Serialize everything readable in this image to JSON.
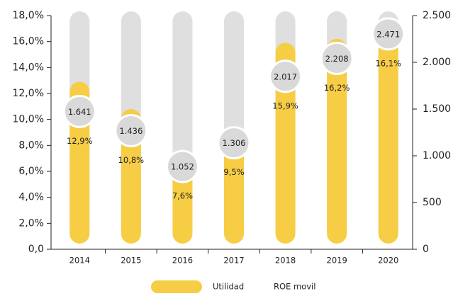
{
  "chart_data": {
    "type": "bar",
    "categories": [
      "2014",
      "2015",
      "2016",
      "2017",
      "2018",
      "2019",
      "2020"
    ],
    "series": [
      {
        "name": "Utilidad",
        "color": "#f6cd45",
        "values": [
          12.9,
          10.8,
          7.6,
          9.5,
          15.9,
          16.2,
          16.1
        ],
        "value_labels": [
          "12,9%",
          "10,8%",
          "7,6%",
          "9,5%",
          "15,9%",
          "16,2%",
          "16,1%"
        ]
      },
      {
        "name": "ROE movil",
        "color": "#d9d9d9",
        "axis": "y2",
        "values": [
          1641,
          1436,
          1052,
          1306,
          2017,
          2208,
          2471
        ],
        "value_labels": [
          "1.641",
          "1.436",
          "1.052",
          "1.306",
          "2.017",
          "2.208",
          "2.471"
        ]
      }
    ],
    "ylim": [
      0,
      18
    ],
    "yticks": [
      {
        "value": 0,
        "label": "0,0"
      },
      {
        "value": 2,
        "label": "2,0%"
      },
      {
        "value": 4,
        "label": "4,0%"
      },
      {
        "value": 6,
        "label": "6,0%"
      },
      {
        "value": 8,
        "label": "8,0%"
      },
      {
        "value": 10,
        "label": "10,0%"
      },
      {
        "value": 12,
        "label": "12,0%"
      },
      {
        "value": 14,
        "label": "14,0%"
      },
      {
        "value": 16,
        "label": "16,0%"
      },
      {
        "value": 18,
        "label": "18,0%"
      }
    ],
    "y2lim": [
      0,
      2500
    ],
    "y2ticks": [
      0,
      500,
      {
        "value": 1000,
        "label": "1.000"
      },
      {
        "value": 1500,
        "label": "1.500"
      },
      {
        "value": 2000,
        "label": "2.000"
      },
      {
        "value": 2500,
        "label": "2.500"
      }
    ],
    "grid": false
  }
}
